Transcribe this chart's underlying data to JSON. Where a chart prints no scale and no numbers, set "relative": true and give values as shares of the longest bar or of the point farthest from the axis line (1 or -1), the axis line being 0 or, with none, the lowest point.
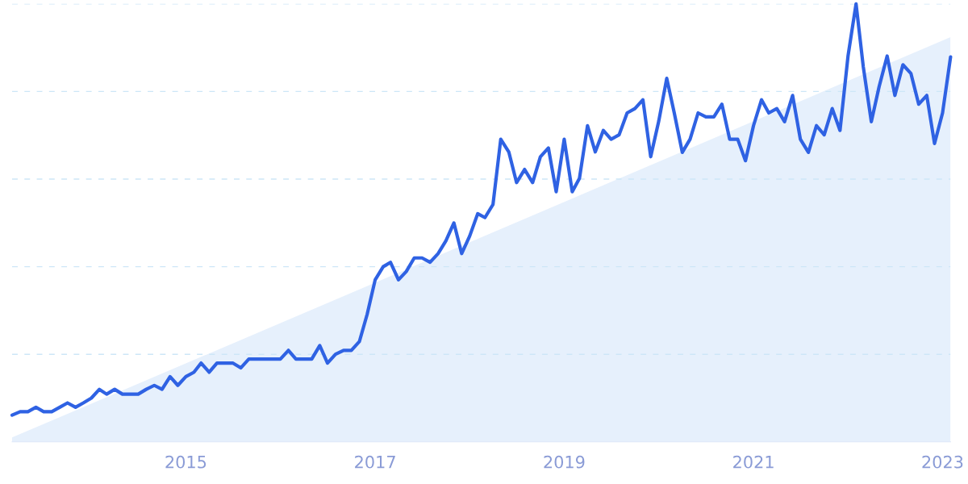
{
  "chart_data": {
    "type": "line",
    "relative": true,
    "grid": false,
    "x": [
      "2013-03",
      "2013-04",
      "2013-05",
      "2013-06",
      "2013-07",
      "2013-08",
      "2013-09",
      "2013-10",
      "2013-11",
      "2013-12",
      "2014-01",
      "2014-02",
      "2014-03",
      "2014-04",
      "2014-05",
      "2014-06",
      "2014-07",
      "2014-08",
      "2014-09",
      "2014-10",
      "2014-11",
      "2014-12",
      "2015-01",
      "2015-02",
      "2015-03",
      "2015-04",
      "2015-05",
      "2015-06",
      "2015-07",
      "2015-08",
      "2015-09",
      "2015-10",
      "2015-11",
      "2015-12",
      "2016-01",
      "2016-02",
      "2016-03",
      "2016-04",
      "2016-05",
      "2016-06",
      "2016-07",
      "2016-08",
      "2016-09",
      "2016-10",
      "2016-11",
      "2016-12",
      "2017-01",
      "2017-02",
      "2017-03",
      "2017-04",
      "2017-05",
      "2017-06",
      "2017-07",
      "2017-08",
      "2017-09",
      "2017-10",
      "2017-11",
      "2017-12",
      "2018-01",
      "2018-02",
      "2018-03",
      "2018-04",
      "2018-05",
      "2018-06",
      "2018-07",
      "2018-08",
      "2018-09",
      "2018-10",
      "2018-11",
      "2018-12",
      "2019-01",
      "2019-02",
      "2019-03",
      "2019-04",
      "2019-05",
      "2019-06",
      "2019-07",
      "2019-08",
      "2019-09",
      "2019-10",
      "2019-11",
      "2019-12",
      "2020-01",
      "2020-02",
      "2020-03",
      "2020-04",
      "2020-05",
      "2020-06",
      "2020-07",
      "2020-08",
      "2020-09",
      "2020-10",
      "2020-11",
      "2020-12",
      "2021-01",
      "2021-02",
      "2021-03",
      "2021-04",
      "2021-05",
      "2021-06",
      "2021-07",
      "2021-08",
      "2021-09",
      "2021-10",
      "2021-11",
      "2021-12",
      "2022-01",
      "2022-02",
      "2022-03",
      "2022-04",
      "2022-05",
      "2022-06",
      "2022-07",
      "2022-08",
      "2022-09",
      "2022-10",
      "2022-11",
      "2022-12",
      "2023-01",
      "2023-02"
    ],
    "series": [
      {
        "color": "#2f62e3",
        "values": [
          0.061,
          0.069,
          0.069,
          0.079,
          0.069,
          0.069,
          0.079,
          0.089,
          0.079,
          0.089,
          0.1,
          0.12,
          0.109,
          0.12,
          0.109,
          0.109,
          0.109,
          0.12,
          0.129,
          0.12,
          0.149,
          0.129,
          0.149,
          0.159,
          0.18,
          0.159,
          0.18,
          0.18,
          0.18,
          0.169,
          0.189,
          0.189,
          0.189,
          0.189,
          0.189,
          0.209,
          0.189,
          0.189,
          0.189,
          0.22,
          0.18,
          0.2,
          0.209,
          0.209,
          0.229,
          0.291,
          0.37,
          0.4,
          0.41,
          0.37,
          0.389,
          0.42,
          0.42,
          0.41,
          0.43,
          0.459,
          0.5,
          0.43,
          0.47,
          0.521,
          0.512,
          0.542,
          0.691,
          0.662,
          0.592,
          0.622,
          0.592,
          0.651,
          0.671,
          0.571,
          0.691,
          0.571,
          0.602,
          0.722,
          0.662,
          0.711,
          0.691,
          0.701,
          0.751,
          0.761,
          0.781,
          0.651,
          0.732,
          0.83,
          0.751,
          0.661,
          0.691,
          0.751,
          0.742,
          0.742,
          0.771,
          0.691,
          0.691,
          0.642,
          0.722,
          0.781,
          0.751,
          0.761,
          0.731,
          0.791,
          0.691,
          0.661,
          0.722,
          0.701,
          0.761,
          0.711,
          0.881,
          1.0,
          0.856,
          0.731,
          0.811,
          0.881,
          0.791,
          0.861,
          0.841,
          0.771,
          0.791,
          0.681,
          0.751,
          0.879
        ]
      },
      {
        "type": "area",
        "color": "#e6f0fc",
        "x": [
          "2013-03",
          "2023-02"
        ],
        "values": [
          0.01,
          0.924
        ]
      }
    ],
    "xlim": [
      "2013-03",
      "2023-02"
    ],
    "xticks": [
      {
        "value": "2015",
        "label": "2015"
      },
      {
        "value": "2017",
        "label": "2017"
      },
      {
        "value": "2019",
        "label": "2019"
      },
      {
        "value": "2021",
        "label": "2021"
      },
      {
        "value": "2023",
        "label": "2023"
      }
    ],
    "ref_lines": [
      {
        "axis": "y",
        "value": 0.2,
        "color": "#cde6f7",
        "line_style": "dashed"
      },
      {
        "axis": "y",
        "value": 0.4,
        "color": "#cde6f7",
        "line_style": "dashed"
      },
      {
        "axis": "y",
        "value": 0.6,
        "color": "#cde6f7",
        "line_style": "dashed"
      },
      {
        "axis": "y",
        "value": 0.8,
        "color": "#cde6f7",
        "line_style": "dashed"
      },
      {
        "axis": "y",
        "value": 1.0,
        "color": "#cde6f7",
        "line_style": "dashed"
      }
    ],
    "tick_labels": "x"
  }
}
